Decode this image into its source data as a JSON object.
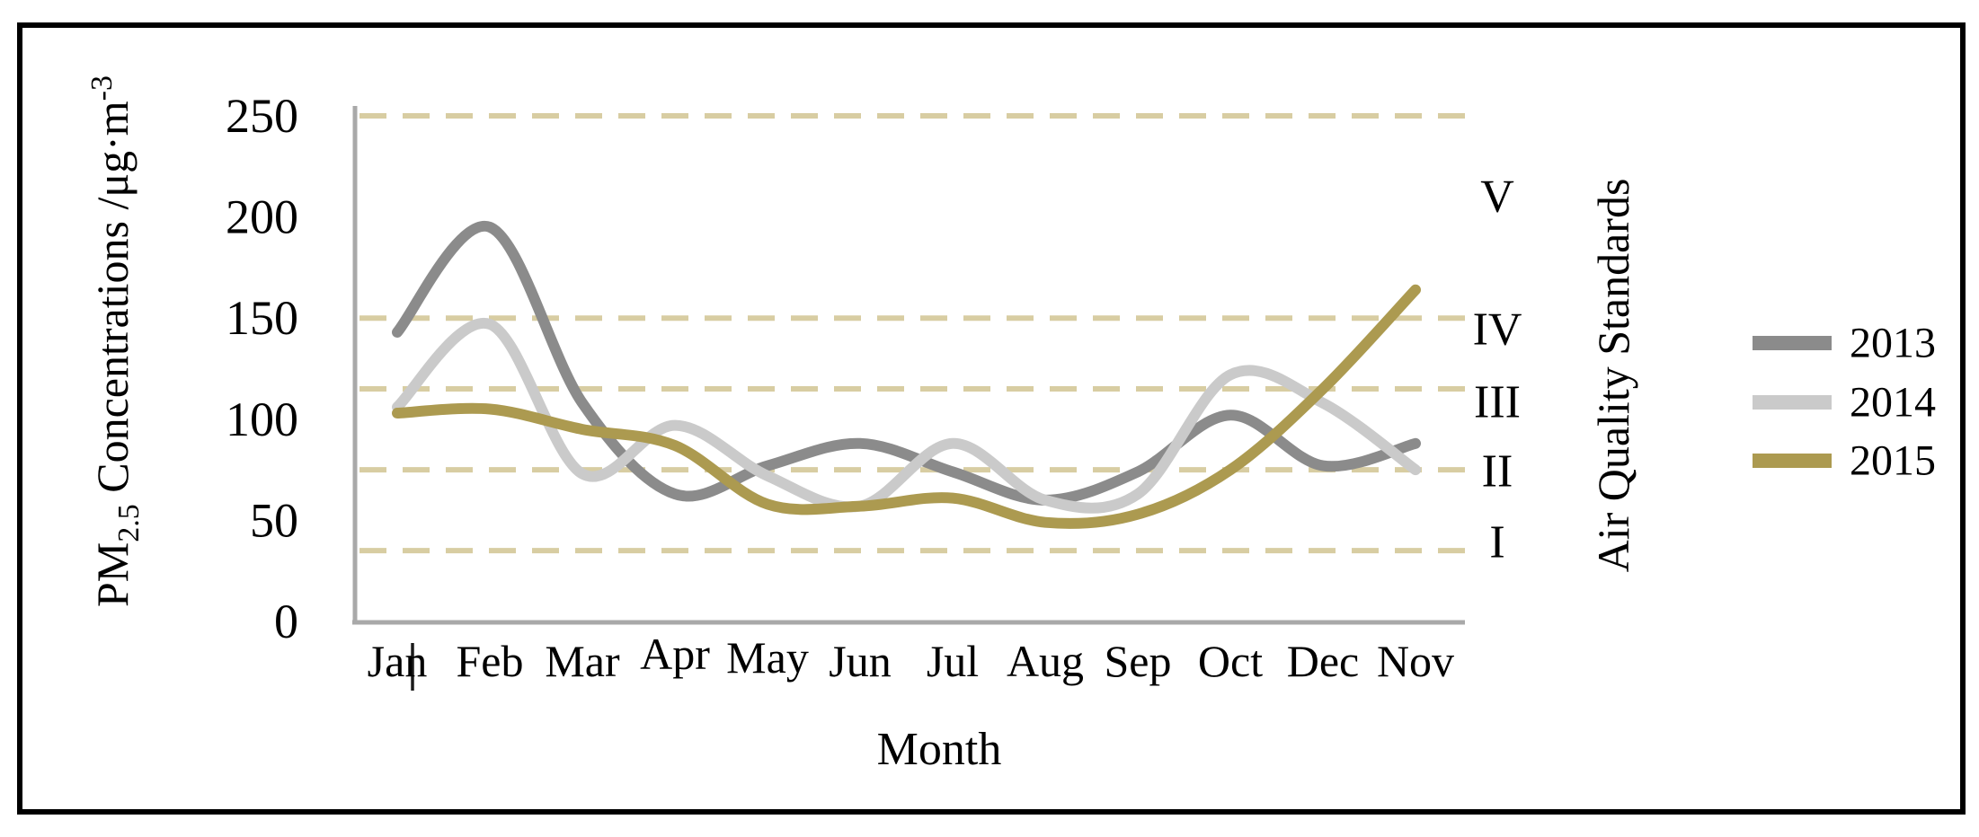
{
  "figure": {
    "border_color": "#000000",
    "background": "#ffffff",
    "axis_color": "#a9a9a9",
    "gridline_color": "#d8cda2",
    "text_color": "#000000"
  },
  "chart_data": {
    "type": "line",
    "title": "",
    "xlabel": "Month",
    "ylabel_parts": {
      "prefix": "PM",
      "subscript": "2.5",
      "middle": " Concentrations  /μg·m",
      "superscript": "-3"
    },
    "y2label": "Air Quality Standards",
    "categories": [
      "Jan",
      "Feb",
      "Mar",
      "Apr",
      "May",
      "Jun",
      "Jul",
      "Aug",
      "Sep",
      "Oct",
      "Dec",
      "Nov"
    ],
    "y_ticks": [
      0,
      50,
      100,
      150,
      200,
      250
    ],
    "ylim": [
      0,
      250
    ],
    "grid": "horizontal-dashed",
    "legend_position": "right",
    "series": [
      {
        "name": "2013",
        "color": "#8b8b8b",
        "values": [
          143,
          195,
          108,
          63,
          77,
          88,
          74,
          60,
          74,
          102,
          77,
          88
        ]
      },
      {
        "name": "2014",
        "color": "#cacaca",
        "values": [
          106,
          147,
          73,
          97,
          72,
          57,
          88,
          60,
          63,
          122,
          108,
          75
        ]
      },
      {
        "name": "2015",
        "color": "#ac9a50",
        "values": [
          103,
          105,
          95,
          87,
          58,
          57,
          61,
          49,
          53,
          75,
          115,
          164
        ]
      }
    ],
    "standards": [
      {
        "numeral": "I",
        "value": 35
      },
      {
        "numeral": "II",
        "value": 75
      },
      {
        "numeral": "III",
        "value": 115
      },
      {
        "numeral": "IV",
        "value": 150
      },
      {
        "numeral": "V",
        "value": 250
      }
    ]
  }
}
